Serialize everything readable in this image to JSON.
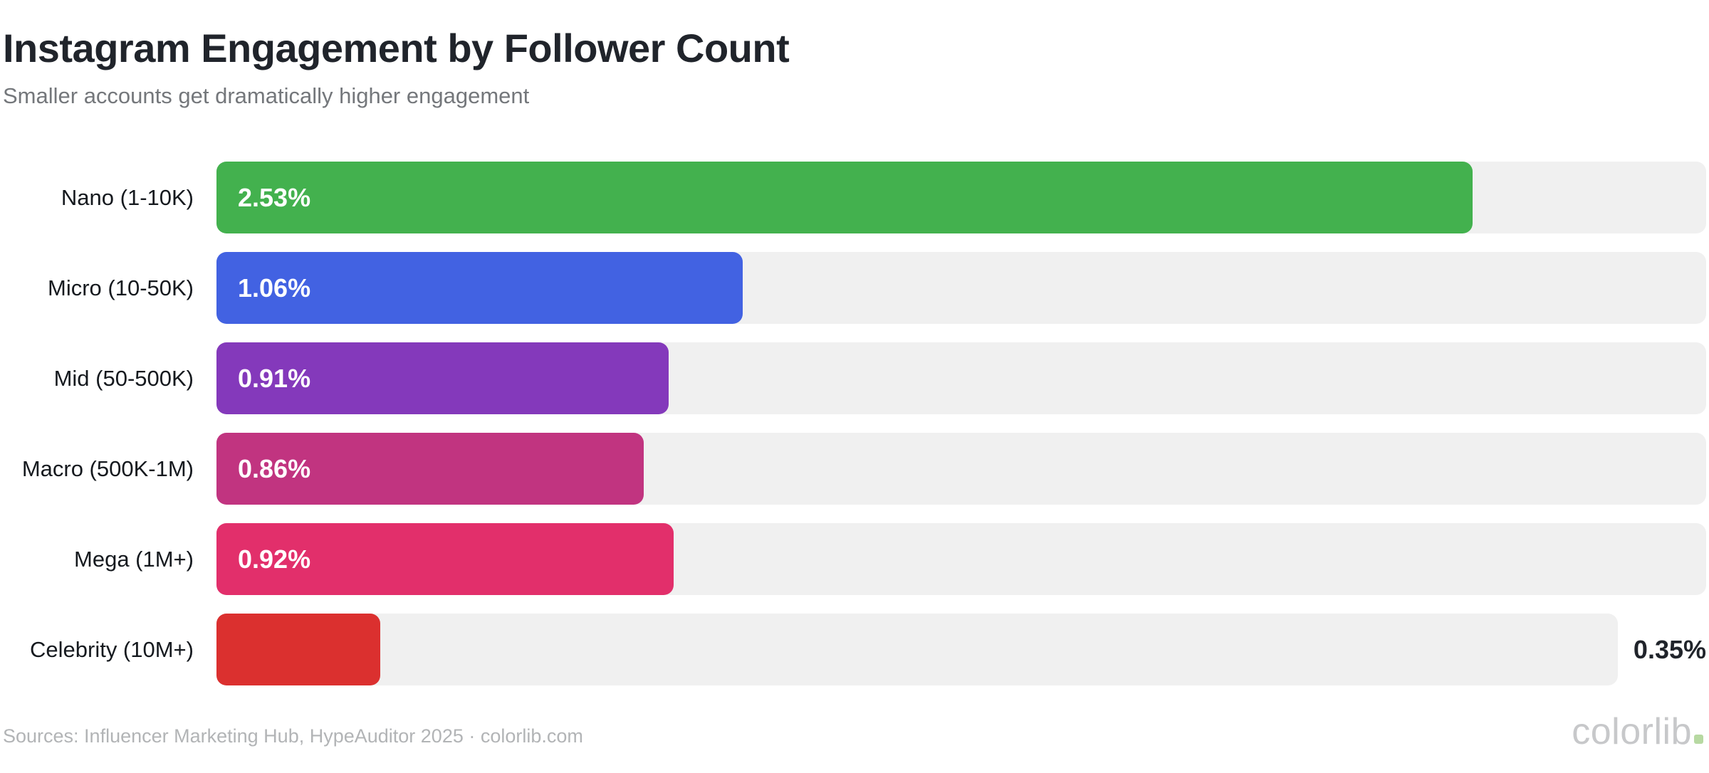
{
  "chart_data": {
    "type": "bar",
    "orientation": "horizontal",
    "title": "Instagram Engagement by Follower Count",
    "subtitle": "Smaller accounts get dramatically higher engagement",
    "unit": "%",
    "axis_max": 3.0,
    "grid": false,
    "legend": false,
    "track_color": "#f0f0f0",
    "categories": [
      "Nano (1-10K)",
      "Micro (10-50K)",
      "Mid (50-500K)",
      "Macro (500K-1M)",
      "Mega (1M+)",
      "Celebrity (10M+)"
    ],
    "values": [
      2.53,
      1.06,
      0.91,
      0.86,
      0.92,
      0.35
    ],
    "rows": [
      {
        "label": "Nano (1-10K)",
        "value": 2.53,
        "display": "2.53%",
        "color": "#43b14e",
        "label_outside": false
      },
      {
        "label": "Micro (10-50K)",
        "value": 1.06,
        "display": "1.06%",
        "color": "#4262e2",
        "label_outside": false
      },
      {
        "label": "Mid (50-500K)",
        "value": 0.91,
        "display": "0.91%",
        "color": "#8439bb",
        "label_outside": false
      },
      {
        "label": "Macro (500K-1M)",
        "value": 0.86,
        "display": "0.86%",
        "color": "#c13480",
        "label_outside": false
      },
      {
        "label": "Mega (1M+)",
        "value": 0.92,
        "display": "0.92%",
        "color": "#e22f6b",
        "label_outside": false
      },
      {
        "label": "Celebrity (10M+)",
        "value": 0.35,
        "display": "0.35%",
        "color": "#db302f",
        "label_outside": true
      }
    ]
  },
  "footer": {
    "sources": "Sources: Influencer Marketing Hub, HypeAuditor 2025 · colorlib.com",
    "watermark": {
      "text": "colorlib",
      "dot_color": "#b7d9a2"
    }
  }
}
